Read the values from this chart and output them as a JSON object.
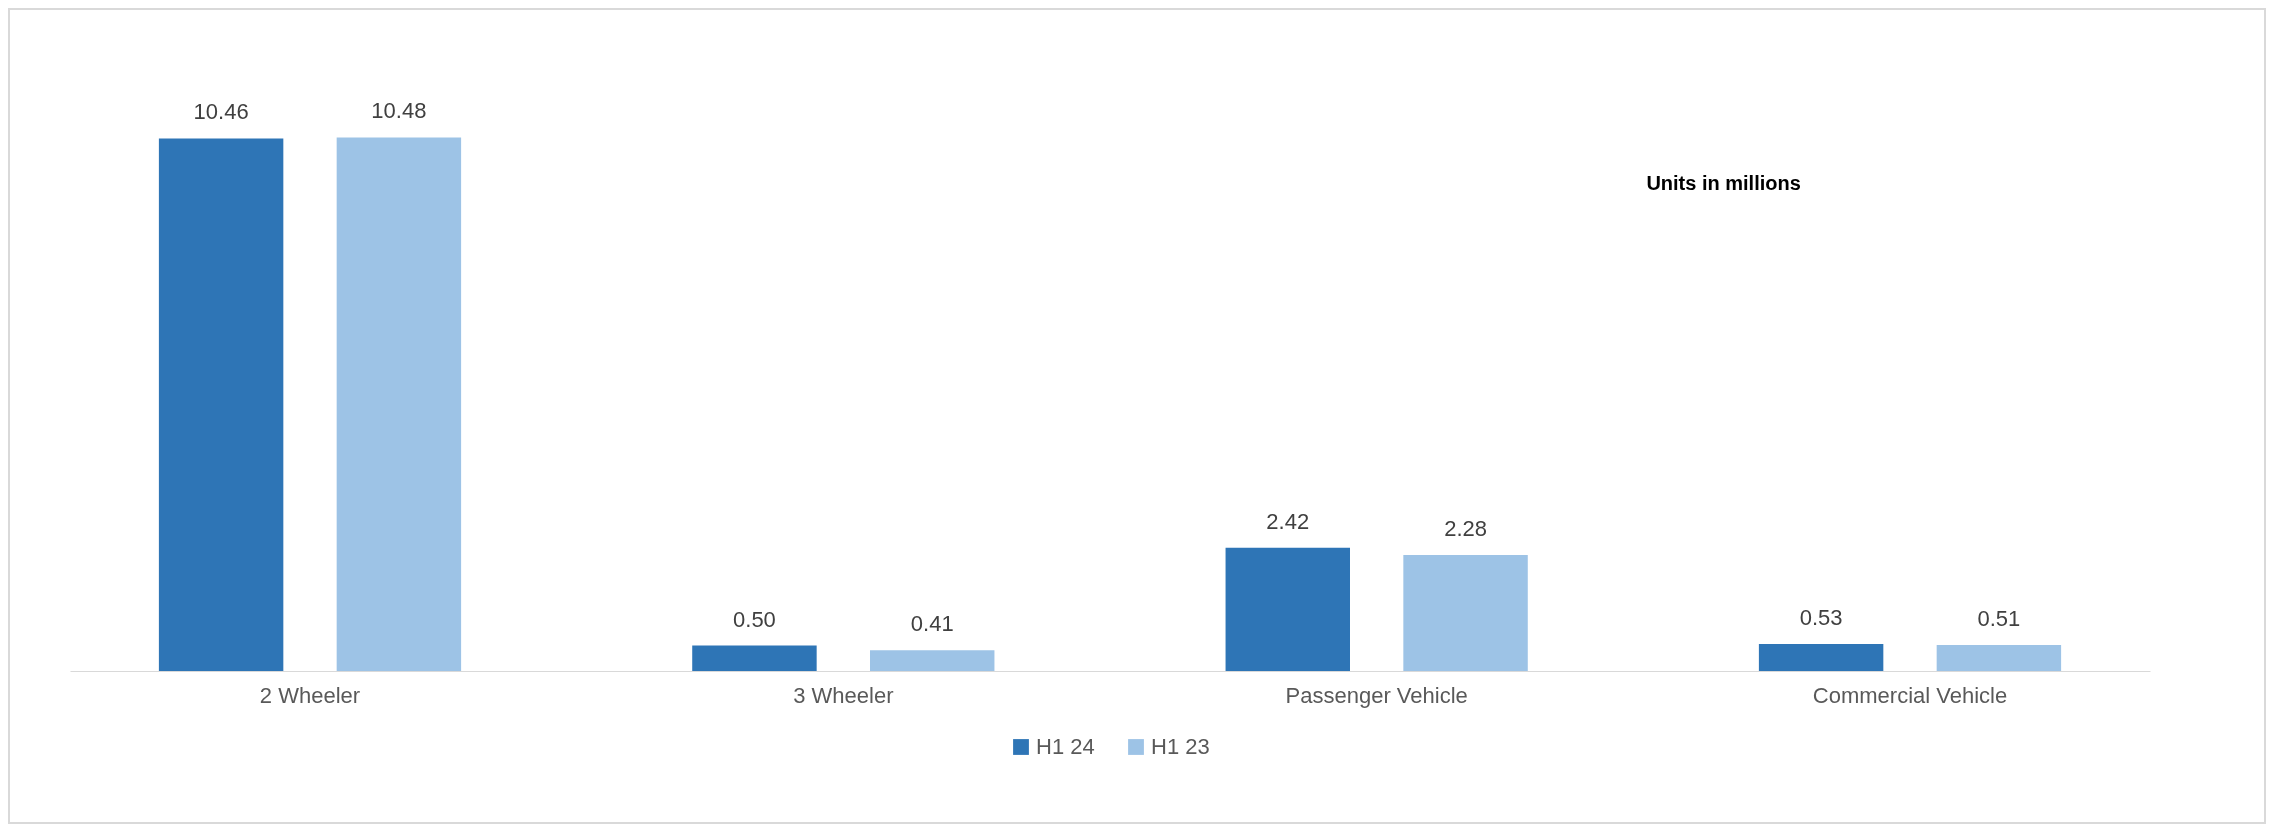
{
  "chart_data": {
    "type": "bar",
    "categories": [
      "2 Wheeler",
      "3 Wheeler",
      "Passenger Vehicle",
      "Commercial Vehicle"
    ],
    "series": [
      {
        "name": "H1 24",
        "color": "#2e75b6",
        "values": [
          10.46,
          0.5,
          2.42,
          0.53
        ],
        "value_labels": [
          "10.46",
          "0.50",
          "2.42",
          "0.53"
        ]
      },
      {
        "name": "H1 23",
        "color": "#9dc3e6",
        "values": [
          10.48,
          0.41,
          2.28,
          0.51
        ],
        "value_labels": [
          "10.48",
          "0.41",
          "2.28",
          "0.51"
        ]
      }
    ],
    "annotations": [
      "Units in millions"
    ],
    "legend": "bottom",
    "grid": false
  }
}
